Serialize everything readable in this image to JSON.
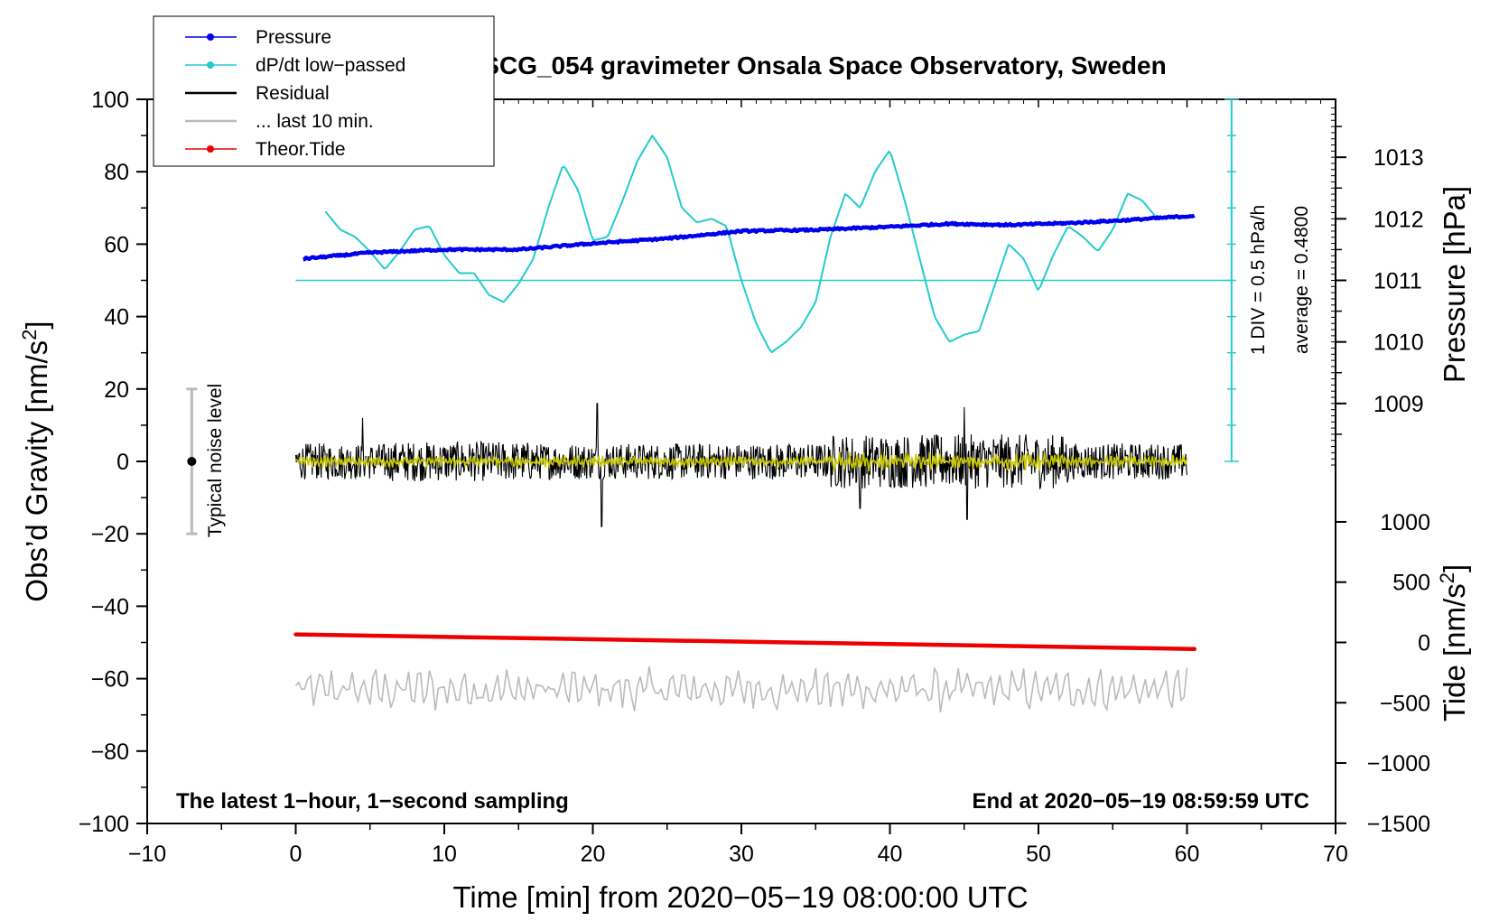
{
  "chart_data": {
    "type": "line",
    "title": "SCG_054 gravimeter Onsala Space Observatory, Sweden",
    "xlabel": "Time [min] from 2020−05−19 08:00:00 UTC",
    "ylabel_left": "Obs’d Gravity [nm/s",
    "ylabel_left_sup": "2",
    "ylabel_left_end": "]",
    "ylabel_pressure": "Pressure [hPa]",
    "ylabel_tide": "Tide [nm/s",
    "ylabel_tide_sup": "2",
    "ylabel_tide_end": "]",
    "xlim": [
      -10,
      70
    ],
    "ylim": [
      -100,
      100
    ],
    "x_ticks": [
      -10,
      0,
      10,
      20,
      30,
      40,
      50,
      60,
      70
    ],
    "x_tick_labels": [
      "−10",
      "0",
      "10",
      "20",
      "30",
      "40",
      "50",
      "60",
      "70"
    ],
    "y_ticks": [
      -100,
      -80,
      -60,
      -40,
      -20,
      0,
      20,
      40,
      60,
      80,
      100
    ],
    "y_tick_labels": [
      "−100",
      "−80",
      "−60",
      "−40",
      "−20",
      "0",
      "20",
      "40",
      "60",
      "80",
      "100"
    ],
    "pressure_axis": {
      "ticks": [
        1009,
        1010,
        1011,
        1012,
        1013
      ],
      "tick_labels": [
        "1009",
        "1010",
        "1011",
        "1012",
        "1013"
      ],
      "ref_value": 1011,
      "ref_gravity": 50,
      "gravity_per_hpa": 17
    },
    "tide_axis": {
      "ticks": [
        -1500,
        -1000,
        -500,
        0,
        500,
        1000
      ],
      "tick_labels": [
        "−1500",
        "−1000",
        "−500",
        "0",
        "500",
        "1000"
      ],
      "ref_value": 0,
      "ref_gravity": -50,
      "gravity_per_unit": 0.0333
    },
    "legend": [
      {
        "label": "Pressure",
        "color": "#0000ee",
        "style": "line-dot"
      },
      {
        "label": "dP/dt low−passed",
        "color": "#22cccc",
        "style": "line-dot"
      },
      {
        "label": "Residual",
        "color": "#000000",
        "style": "line"
      },
      {
        "label": "... last 10 min.",
        "color": "#bbbbbb",
        "style": "line"
      },
      {
        "label": "Theor.Tide",
        "color": "#ee0000",
        "style": "line-dot"
      }
    ],
    "series": [
      {
        "name": "Pressure",
        "unit": "hPa",
        "color": "#0000ee",
        "x": [
          0.5,
          5,
          10,
          15,
          20,
          25,
          30,
          35,
          40,
          44,
          48,
          52,
          56,
          60.5
        ],
        "values": [
          1011.35,
          1011.45,
          1011.5,
          1011.5,
          1011.6,
          1011.68,
          1011.8,
          1011.82,
          1011.87,
          1011.92,
          1011.9,
          1011.93,
          1011.98,
          1012.05
        ]
      },
      {
        "name": "dP/dt low−passed",
        "unit": "nm/s2 scale",
        "color": "#22cccc",
        "x": [
          2,
          3,
          4,
          5,
          6,
          7,
          8,
          9,
          10,
          11,
          12,
          13,
          14,
          15,
          16,
          17,
          18,
          19,
          20,
          21,
          22,
          23,
          24,
          25,
          26,
          27,
          28,
          29,
          30,
          31,
          32,
          33,
          34,
          35,
          36,
          37,
          38,
          39,
          40,
          41,
          42,
          43,
          44,
          45,
          46,
          47,
          48,
          49,
          50,
          51,
          52,
          53,
          54,
          55,
          56,
          57,
          58
        ],
        "values": [
          69,
          64,
          62,
          58,
          53,
          58,
          64,
          65,
          57,
          52,
          52,
          46,
          44,
          49,
          56,
          70,
          82,
          75,
          61,
          62,
          72,
          83,
          90,
          84,
          70,
          66,
          67,
          65,
          50,
          38,
          30,
          33,
          37,
          44,
          62,
          74,
          70,
          80,
          86,
          72,
          56,
          40,
          33,
          35,
          36,
          48,
          60,
          56,
          47,
          57,
          65,
          62,
          58,
          64,
          74,
          72,
          67
        ]
      },
      {
        "name": "Residual",
        "unit": "nm/s2",
        "color": "#000000",
        "x": [
          0,
          60
        ],
        "amplitude": 5,
        "spikes": [
          [
            4.5,
            12
          ],
          [
            20.3,
            16
          ],
          [
            20.6,
            -18
          ],
          [
            45,
            15
          ],
          [
            45.2,
            -16
          ],
          [
            38,
            -13
          ]
        ]
      },
      {
        "name": "Residual low−passed",
        "unit": "nm/s2",
        "color": "#c8c800",
        "x": [
          0,
          60
        ],
        "amplitude": 1.6
      },
      {
        "name": "... last 10 min.",
        "unit": "nm/s2",
        "color": "#bbbbbb",
        "x": [
          0,
          60
        ],
        "center": -63,
        "amplitude": 6
      },
      {
        "name": "Theor.Tide",
        "unit": "nm/s2",
        "color": "#ee0000",
        "x": [
          0,
          60.5
        ],
        "values": [
          -47.8,
          -51.8
        ]
      }
    ],
    "pressure_reference_line": {
      "value": 1011,
      "x": [
        0,
        63
      ]
    },
    "scale_bar": {
      "x": 63,
      "y": [
        0,
        100
      ],
      "divisions": 10
    },
    "noise_bar": {
      "x": -7,
      "y": [
        -20,
        20
      ],
      "center": 0
    }
  },
  "annotations": {
    "noise_label": "Typical noise level",
    "div_label": "1 DIV = 0.5 hPa/h",
    "average_label": "average = 0.4800",
    "bottom_left": "The latest 1−hour, 1−second sampling",
    "bottom_right": "End at 2020−05−19 08:59:59 UTC"
  }
}
